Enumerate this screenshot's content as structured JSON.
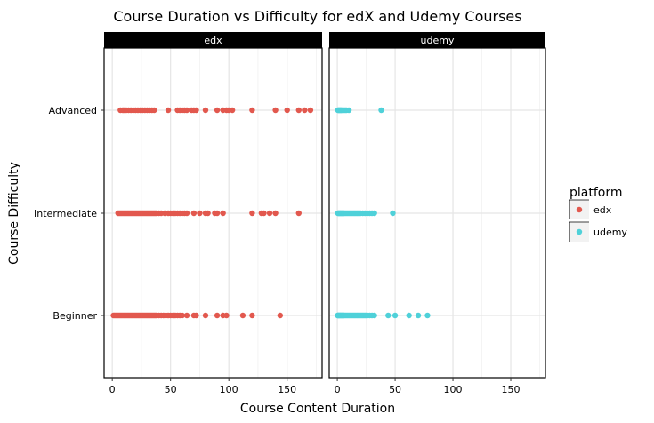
{
  "chart_data": {
    "type": "scatter",
    "title": "Course Duration vs Difficulty for edX and Udemy Courses",
    "xlabel": "Course Content Duration",
    "ylabel": "Course Difficulty",
    "xlim": [
      -7,
      180
    ],
    "x_ticks": [
      0,
      50,
      100,
      150
    ],
    "x_tick_labels": [
      "0",
      "50",
      "100",
      "150"
    ],
    "categories": [
      "Beginner",
      "Intermediate",
      "Advanced"
    ],
    "grid": true,
    "legend": {
      "title": "platform",
      "placement": "right",
      "entries": [
        {
          "label": "edx",
          "color": "#e2584e"
        },
        {
          "label": "udemy",
          "color": "#4fd1d9"
        }
      ]
    },
    "facets": [
      {
        "label": "edx",
        "color": "#e2584e",
        "points": [
          {
            "category": "Advanced",
            "x": [
              7,
              9,
              10,
              12,
              14,
              16,
              18,
              20,
              22,
              24,
              26,
              28,
              30,
              32,
              34,
              36,
              48,
              56,
              58,
              60,
              62,
              64,
              68,
              70,
              72,
              80,
              90,
              95,
              98,
              100,
              103,
              120,
              140,
              150,
              160,
              165,
              170
            ]
          },
          {
            "category": "Intermediate",
            "x": [
              5,
              6,
              7,
              8,
              9,
              10,
              11,
              12,
              13,
              14,
              15,
              16,
              17,
              18,
              19,
              20,
              21,
              22,
              23,
              24,
              25,
              26,
              27,
              28,
              29,
              30,
              31,
              32,
              33,
              34,
              35,
              36,
              37,
              38,
              40,
              42,
              45,
              48,
              50,
              52,
              54,
              56,
              58,
              60,
              62,
              64,
              70,
              75,
              80,
              82,
              88,
              90,
              95,
              120,
              128,
              130,
              135,
              140,
              160
            ]
          },
          {
            "category": "Beginner",
            "x": [
              1,
              2,
              3,
              4,
              5,
              6,
              7,
              8,
              9,
              10,
              11,
              12,
              13,
              14,
              15,
              16,
              17,
              18,
              19,
              20,
              21,
              22,
              23,
              24,
              25,
              26,
              27,
              28,
              29,
              30,
              31,
              32,
              33,
              34,
              35,
              36,
              37,
              38,
              40,
              42,
              44,
              46,
              48,
              50,
              52,
              54,
              56,
              58,
              60,
              64,
              70,
              72,
              80,
              90,
              95,
              98,
              112,
              120,
              144
            ]
          }
        ]
      },
      {
        "label": "udemy",
        "color": "#4fd1d9",
        "points": [
          {
            "category": "Advanced",
            "x": [
              0.5,
              1,
              1.5,
              2,
              2.5,
              3,
              3.5,
              4,
              5,
              6,
              7,
              8,
              10,
              38
            ]
          },
          {
            "category": "Intermediate",
            "x": [
              0.5,
              1,
              1.5,
              2,
              2.5,
              3,
              3.5,
              4,
              4.5,
              5,
              5.5,
              6,
              7,
              8,
              9,
              10,
              11,
              12,
              13,
              14,
              15,
              16,
              17,
              18,
              19,
              20,
              22,
              24,
              26,
              28,
              30,
              32,
              48
            ]
          },
          {
            "category": "Beginner",
            "x": [
              0.3,
              0.6,
              1,
              1.5,
              2,
              2.5,
              3,
              3.5,
              4,
              4.5,
              5,
              5.5,
              6,
              7,
              8,
              9,
              10,
              11,
              12,
              13,
              14,
              15,
              16,
              17,
              18,
              19,
              20,
              21,
              22,
              23,
              24,
              25,
              26,
              28,
              30,
              32,
              44,
              50,
              62,
              70,
              78
            ]
          }
        ]
      }
    ]
  }
}
